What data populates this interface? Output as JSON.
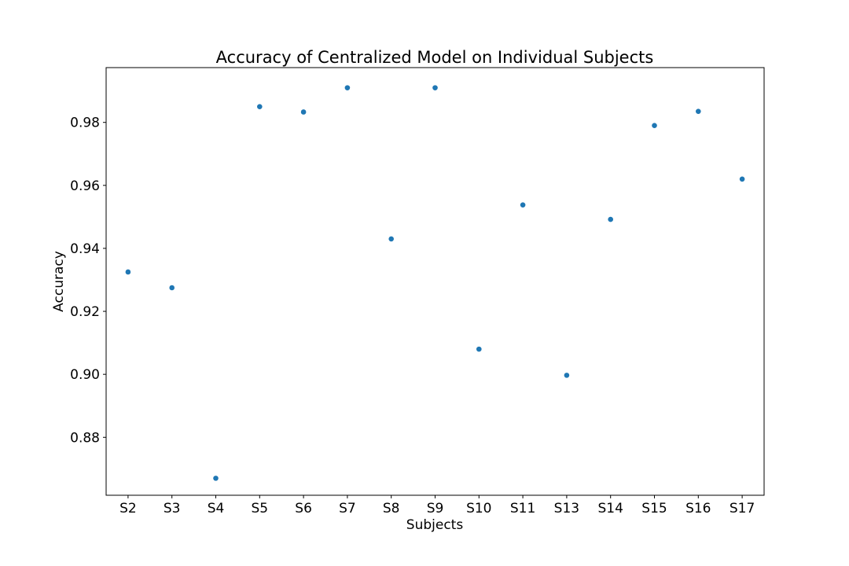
{
  "chart_data": {
    "type": "scatter",
    "title": "Accuracy of Centralized Model on Individual Subjects",
    "xlabel": "Subjects",
    "ylabel": "Accuracy",
    "categories": [
      "S2",
      "S3",
      "S4",
      "S5",
      "S6",
      "S7",
      "S8",
      "S9",
      "S10",
      "S11",
      "S13",
      "S14",
      "S15",
      "S16",
      "S17"
    ],
    "values": [
      0.9325,
      0.9275,
      0.867,
      0.985,
      0.9833,
      0.991,
      0.943,
      0.991,
      0.908,
      0.9538,
      0.8997,
      0.9492,
      0.979,
      0.9835,
      0.962
    ],
    "ylim": [
      0.8616,
      0.9974
    ],
    "yticks": [
      "0.88",
      "0.90",
      "0.92",
      "0.94",
      "0.96",
      "0.98"
    ],
    "grid": false,
    "legend": "none",
    "marker_color": "#1f77b4"
  }
}
